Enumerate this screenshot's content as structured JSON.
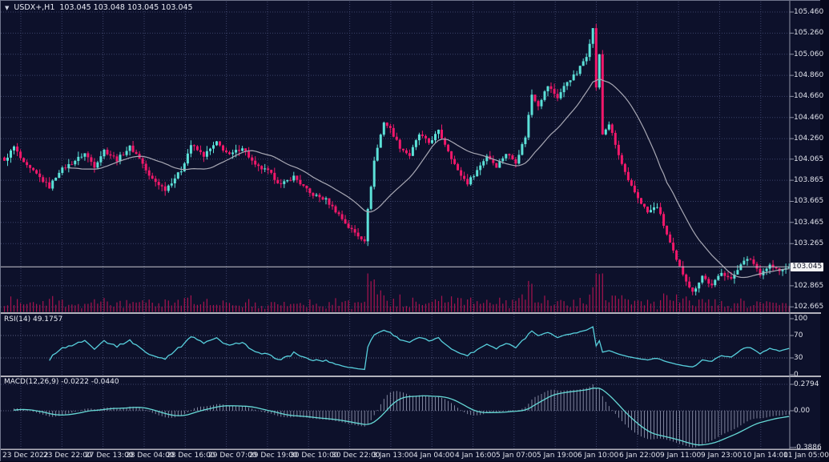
{
  "titlebar": {
    "symbol_period": "USDX+,H1",
    "ohlc": "103.045 103.048 103.045 103.045"
  },
  "icons": {
    "dropdown": "▼"
  },
  "colors": {
    "background": "#0d112b",
    "grid": "#3d436a",
    "level_line": "#5a6080",
    "bull": "#5ce1d8",
    "bear": "#f1186a",
    "volume": "#a9134f",
    "ma_line": "#a8a8b4",
    "rsi_line": "#57cfdc",
    "macd_line": "#66d9d6",
    "macd_hist": "#9ba0b8",
    "axis_text": "#dfe1ea",
    "axis_line": "#8e93a6",
    "separator": "#b2b2bc",
    "current_price_line": "#c8c8cf",
    "price_tag_bg": "#f2f2f4",
    "price_tag_text": "#15172b"
  },
  "chart_data": {
    "type": "candlestick",
    "symbol": "USDX+",
    "timeframe": "H1",
    "ohlc_display": "103.045 103.048 103.045 103.045",
    "current_price": "103.045",
    "price_axis_ticks": [
      "105.460",
      "105.260",
      "105.060",
      "104.860",
      "104.660",
      "104.460",
      "104.260",
      "104.065",
      "103.865",
      "103.665",
      "103.465",
      "103.265",
      "102.865",
      "102.665"
    ],
    "time_axis_labels": [
      "23 Dec 2022",
      "23 Dec 22:00",
      "27 Dec 13:00",
      "28 Dec 04:00",
      "28 Dec 16:00",
      "29 Dec 07:00",
      "29 Dec 19:00",
      "30 Dec 10:00",
      "30 Dec 22:00",
      "3 Jan 13:00",
      "4 Jan 04:00",
      "4 Jan 16:00",
      "5 Jan 07:00",
      "5 Jan 19:00",
      "6 Jan 10:00",
      "6 Jan 22:00",
      "9 Jan 11:00",
      "9 Jan 23:00",
      "10 Jan 14:00",
      "11 Jan 05:00"
    ],
    "price_keypoints": [
      [
        0,
        104.05
      ],
      [
        3,
        104.18
      ],
      [
        6,
        104.02
      ],
      [
        10,
        103.92
      ],
      [
        14,
        103.8
      ],
      [
        17,
        103.95
      ],
      [
        21,
        104.03
      ],
      [
        25,
        104.12
      ],
      [
        28,
        104.0
      ],
      [
        31,
        104.15
      ],
      [
        35,
        104.06
      ],
      [
        39,
        104.18
      ],
      [
        42,
        104.08
      ],
      [
        45,
        103.9
      ],
      [
        50,
        103.78
      ],
      [
        55,
        103.96
      ],
      [
        58,
        104.2
      ],
      [
        62,
        104.1
      ],
      [
        66,
        104.22
      ],
      [
        70,
        104.1
      ],
      [
        74,
        104.18
      ],
      [
        78,
        104.0
      ],
      [
        82,
        103.95
      ],
      [
        86,
        103.82
      ],
      [
        90,
        103.9
      ],
      [
        95,
        103.74
      ],
      [
        100,
        103.68
      ],
      [
        104,
        103.54
      ],
      [
        107,
        103.42
      ],
      [
        110,
        103.34
      ],
      [
        112,
        103.3
      ],
      [
        113,
        103.58
      ],
      [
        115,
        104.05
      ],
      [
        118,
        104.42
      ],
      [
        120,
        104.35
      ],
      [
        123,
        104.18
      ],
      [
        126,
        104.1
      ],
      [
        129,
        104.3
      ],
      [
        132,
        104.22
      ],
      [
        135,
        104.33
      ],
      [
        138,
        104.15
      ],
      [
        141,
        103.95
      ],
      [
        144,
        103.84
      ],
      [
        147,
        103.96
      ],
      [
        150,
        104.1
      ],
      [
        153,
        104.0
      ],
      [
        156,
        104.12
      ],
      [
        159,
        104.04
      ],
      [
        162,
        104.28
      ],
      [
        164,
        104.68
      ],
      [
        166,
        104.58
      ],
      [
        169,
        104.76
      ],
      [
        172,
        104.65
      ],
      [
        175,
        104.8
      ],
      [
        178,
        104.88
      ],
      [
        181,
        105.05
      ],
      [
        183,
        105.3
      ],
      [
        184,
        104.75
      ],
      [
        185,
        105.05
      ],
      [
        186,
        104.3
      ],
      [
        188,
        104.4
      ],
      [
        191,
        104.1
      ],
      [
        194,
        103.85
      ],
      [
        197,
        103.7
      ],
      [
        200,
        103.56
      ],
      [
        203,
        103.62
      ],
      [
        206,
        103.35
      ],
      [
        209,
        103.1
      ],
      [
        212,
        102.92
      ],
      [
        214,
        102.8
      ],
      [
        217,
        102.96
      ],
      [
        220,
        102.86
      ],
      [
        223,
        103.0
      ],
      [
        226,
        102.92
      ],
      [
        229,
        103.08
      ],
      [
        232,
        103.12
      ],
      [
        235,
        102.98
      ],
      [
        238,
        103.06
      ],
      [
        241,
        103.0
      ],
      [
        244,
        103.045
      ]
    ],
    "ma_period": 21,
    "rsi": {
      "label": "RSI(14)",
      "value": "49.1757",
      "period": 14,
      "scale_ticks": [
        "100",
        "70",
        "30",
        "0"
      ],
      "levels": [
        70,
        30
      ]
    },
    "macd": {
      "label": "MACD(12,26,9)",
      "values": "-0.0222 -0.0440",
      "fast": 12,
      "slow": 26,
      "signal_period": 9,
      "scale_ticks": [
        "0.2794",
        "0.00",
        "-0.3886"
      ],
      "scale_max": 0.2794,
      "scale_min": -0.3886
    }
  }
}
